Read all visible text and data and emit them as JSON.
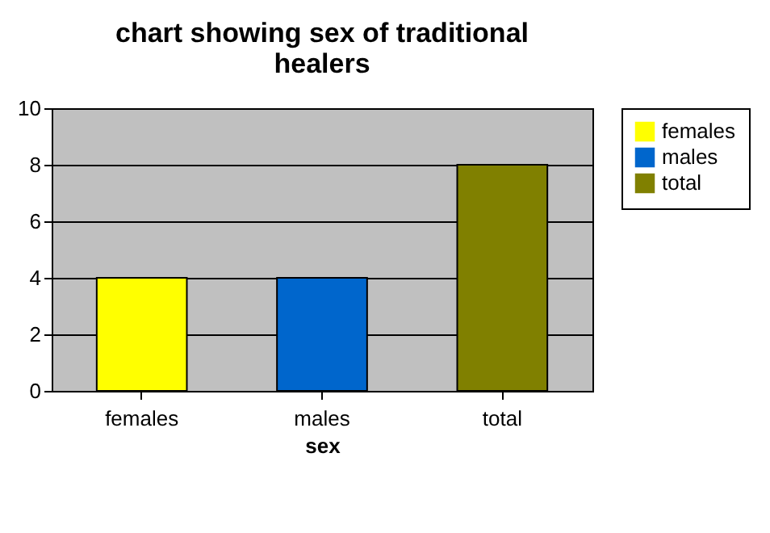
{
  "chart_data": {
    "type": "bar",
    "title": "chart showing sex of traditional healers",
    "xlabel": "sex",
    "categories": [
      "females",
      "males",
      "total"
    ],
    "series": [
      {
        "name": "females",
        "color": "#ffff00",
        "values": [
          4,
          null,
          null
        ]
      },
      {
        "name": "males",
        "color": "#0066cc",
        "values": [
          null,
          4,
          null
        ]
      },
      {
        "name": "total",
        "color": "#808000",
        "values": [
          null,
          null,
          8
        ]
      }
    ],
    "ylim": [
      0,
      10
    ],
    "yticks": [
      0,
      2,
      4,
      6,
      8,
      10
    ],
    "grid": "y",
    "legend": "right"
  }
}
